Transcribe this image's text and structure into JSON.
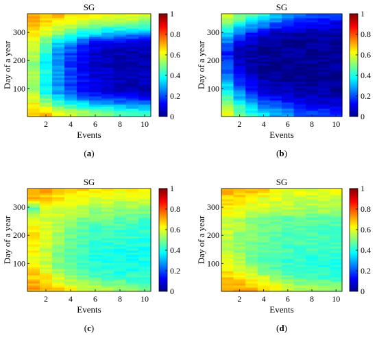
{
  "chart_data": [
    {
      "type": "heatmap",
      "panel_tag": "a",
      "title": "SG",
      "xlabel": "Events",
      "ylabel": "Day of a year",
      "x": [
        1,
        2,
        3,
        4,
        5,
        6,
        7,
        8,
        9,
        10
      ],
      "xticks": [
        2,
        4,
        6,
        8,
        10
      ],
      "yticks": [
        100,
        200,
        300
      ],
      "xlim": [
        0.5,
        10.5
      ],
      "ylim": [
        1,
        366
      ],
      "day_bands": [
        [
          15,
          [
            0.7,
            0.68,
            0.62,
            0.58,
            0.54,
            0.5,
            0.48,
            0.46,
            0.44,
            0.43
          ]
        ],
        [
          50,
          [
            0.62,
            0.52,
            0.44,
            0.38,
            0.34,
            0.3,
            0.27,
            0.25,
            0.23,
            0.22
          ]
        ],
        [
          85,
          [
            0.55,
            0.4,
            0.28,
            0.2,
            0.15,
            0.12,
            0.1,
            0.09,
            0.08,
            0.07
          ]
        ],
        [
          120,
          [
            0.5,
            0.38,
            0.26,
            0.18,
            0.12,
            0.09,
            0.07,
            0.06,
            0.05,
            0.05
          ]
        ],
        [
          155,
          [
            0.55,
            0.4,
            0.28,
            0.2,
            0.14,
            0.1,
            0.08,
            0.07,
            0.06,
            0.06
          ]
        ],
        [
          190,
          [
            0.5,
            0.36,
            0.25,
            0.17,
            0.11,
            0.08,
            0.06,
            0.05,
            0.05,
            0.05
          ]
        ],
        [
          225,
          [
            0.55,
            0.4,
            0.27,
            0.18,
            0.12,
            0.08,
            0.06,
            0.05,
            0.05,
            0.05
          ]
        ],
        [
          260,
          [
            0.58,
            0.46,
            0.34,
            0.25,
            0.17,
            0.11,
            0.08,
            0.07,
            0.06,
            0.06
          ]
        ],
        [
          295,
          [
            0.64,
            0.58,
            0.5,
            0.44,
            0.38,
            0.33,
            0.3,
            0.28,
            0.27,
            0.26
          ]
        ],
        [
          330,
          [
            0.7,
            0.66,
            0.62,
            0.58,
            0.55,
            0.53,
            0.51,
            0.5,
            0.49,
            0.48
          ]
        ],
        [
          360,
          [
            0.72,
            0.7,
            0.68,
            0.66,
            0.64,
            0.62,
            0.61,
            0.6,
            0.6,
            0.59
          ]
        ]
      ]
    },
    {
      "type": "heatmap",
      "panel_tag": "b",
      "title": "SG",
      "xlabel": "Events",
      "ylabel": "Day of a year",
      "x": [
        1,
        2,
        3,
        4,
        5,
        6,
        7,
        8,
        9,
        10
      ],
      "xticks": [
        2,
        4,
        6,
        8,
        10
      ],
      "yticks": [
        100,
        200,
        300
      ],
      "xlim": [
        0.5,
        10.5
      ],
      "ylim": [
        1,
        366
      ],
      "day_bands": [
        [
          15,
          [
            0.6,
            0.48,
            0.4,
            0.34,
            0.3,
            0.26,
            0.22,
            0.2,
            0.18,
            0.17
          ]
        ],
        [
          50,
          [
            0.52,
            0.38,
            0.28,
            0.22,
            0.18,
            0.15,
            0.12,
            0.1,
            0.09,
            0.08
          ]
        ],
        [
          85,
          [
            0.4,
            0.26,
            0.16,
            0.11,
            0.08,
            0.06,
            0.05,
            0.04,
            0.04,
            0.04
          ]
        ],
        [
          120,
          [
            0.32,
            0.18,
            0.1,
            0.06,
            0.04,
            0.03,
            0.03,
            0.03,
            0.03,
            0.03
          ]
        ],
        [
          155,
          [
            0.22,
            0.1,
            0.05,
            0.03,
            0.02,
            0.02,
            0.02,
            0.02,
            0.02,
            0.02
          ]
        ],
        [
          190,
          [
            0.18,
            0.07,
            0.04,
            0.02,
            0.02,
            0.02,
            0.02,
            0.02,
            0.02,
            0.02
          ]
        ],
        [
          225,
          [
            0.16,
            0.06,
            0.03,
            0.02,
            0.02,
            0.02,
            0.02,
            0.02,
            0.02,
            0.02
          ]
        ],
        [
          260,
          [
            0.22,
            0.1,
            0.05,
            0.03,
            0.02,
            0.02,
            0.02,
            0.02,
            0.02,
            0.02
          ]
        ],
        [
          295,
          [
            0.34,
            0.22,
            0.14,
            0.09,
            0.06,
            0.05,
            0.04,
            0.04,
            0.04,
            0.04
          ]
        ],
        [
          330,
          [
            0.48,
            0.4,
            0.32,
            0.26,
            0.2,
            0.16,
            0.13,
            0.11,
            0.1,
            0.09
          ]
        ],
        [
          360,
          [
            0.58,
            0.52,
            0.46,
            0.4,
            0.34,
            0.28,
            0.24,
            0.21,
            0.19,
            0.18
          ]
        ]
      ]
    },
    {
      "type": "heatmap",
      "panel_tag": "c",
      "title": "SG",
      "xlabel": "Events",
      "ylabel": "Day of a year",
      "x": [
        1,
        2,
        3,
        4,
        5,
        6,
        7,
        8,
        9,
        10
      ],
      "xticks": [
        2,
        4,
        6,
        8,
        10
      ],
      "yticks": [
        100,
        200,
        300
      ],
      "xlim": [
        0.5,
        10.5
      ],
      "ylim": [
        1,
        366
      ],
      "day_bands": [
        [
          15,
          [
            0.72,
            0.7,
            0.66,
            0.62,
            0.58,
            0.55,
            0.53,
            0.52,
            0.51,
            0.5
          ]
        ],
        [
          50,
          [
            0.68,
            0.64,
            0.58,
            0.53,
            0.49,
            0.46,
            0.44,
            0.43,
            0.42,
            0.42
          ]
        ],
        [
          85,
          [
            0.64,
            0.58,
            0.52,
            0.47,
            0.44,
            0.42,
            0.41,
            0.4,
            0.4,
            0.4
          ]
        ],
        [
          120,
          [
            0.62,
            0.56,
            0.5,
            0.46,
            0.43,
            0.41,
            0.4,
            0.4,
            0.39,
            0.39
          ]
        ],
        [
          155,
          [
            0.62,
            0.56,
            0.51,
            0.47,
            0.44,
            0.42,
            0.41,
            0.4,
            0.4,
            0.4
          ]
        ],
        [
          190,
          [
            0.64,
            0.58,
            0.53,
            0.49,
            0.46,
            0.44,
            0.43,
            0.42,
            0.42,
            0.41
          ]
        ],
        [
          225,
          [
            0.62,
            0.58,
            0.54,
            0.5,
            0.47,
            0.45,
            0.44,
            0.43,
            0.43,
            0.42
          ]
        ],
        [
          260,
          [
            0.6,
            0.58,
            0.56,
            0.53,
            0.51,
            0.49,
            0.48,
            0.47,
            0.47,
            0.46
          ]
        ],
        [
          295,
          [
            0.45,
            0.6,
            0.58,
            0.56,
            0.55,
            0.54,
            0.53,
            0.52,
            0.52,
            0.52
          ]
        ],
        [
          330,
          [
            0.68,
            0.66,
            0.64,
            0.62,
            0.61,
            0.6,
            0.59,
            0.58,
            0.58,
            0.57
          ]
        ],
        [
          360,
          [
            0.72,
            0.72,
            0.7,
            0.68,
            0.66,
            0.64,
            0.63,
            0.62,
            0.62,
            0.61
          ]
        ]
      ]
    },
    {
      "type": "heatmap",
      "panel_tag": "d",
      "title": "SG",
      "xlabel": "Events",
      "ylabel": "Day of a year",
      "x": [
        1,
        2,
        3,
        4,
        5,
        6,
        7,
        8,
        9,
        10
      ],
      "xticks": [
        2,
        4,
        6,
        8,
        10
      ],
      "yticks": [
        100,
        200,
        300
      ],
      "xlim": [
        0.5,
        10.5
      ],
      "ylim": [
        1,
        366
      ],
      "day_bands": [
        [
          15,
          [
            0.72,
            0.72,
            0.7,
            0.66,
            0.62,
            0.58,
            0.55,
            0.53,
            0.52,
            0.51
          ]
        ],
        [
          50,
          [
            0.68,
            0.66,
            0.62,
            0.57,
            0.52,
            0.48,
            0.46,
            0.44,
            0.43,
            0.43
          ]
        ],
        [
          85,
          [
            0.62,
            0.58,
            0.53,
            0.48,
            0.45,
            0.43,
            0.42,
            0.41,
            0.41,
            0.4
          ]
        ],
        [
          120,
          [
            0.58,
            0.54,
            0.5,
            0.47,
            0.45,
            0.43,
            0.42,
            0.42,
            0.42,
            0.41
          ]
        ],
        [
          155,
          [
            0.56,
            0.52,
            0.49,
            0.47,
            0.46,
            0.45,
            0.44,
            0.44,
            0.44,
            0.44
          ]
        ],
        [
          190,
          [
            0.57,
            0.53,
            0.5,
            0.48,
            0.47,
            0.46,
            0.45,
            0.45,
            0.45,
            0.45
          ]
        ],
        [
          225,
          [
            0.56,
            0.53,
            0.5,
            0.48,
            0.47,
            0.46,
            0.46,
            0.45,
            0.45,
            0.45
          ]
        ],
        [
          260,
          [
            0.58,
            0.55,
            0.52,
            0.5,
            0.49,
            0.48,
            0.48,
            0.47,
            0.47,
            0.47
          ]
        ],
        [
          295,
          [
            0.64,
            0.62,
            0.6,
            0.58,
            0.57,
            0.56,
            0.55,
            0.55,
            0.55,
            0.54
          ]
        ],
        [
          330,
          [
            0.66,
            0.64,
            0.62,
            0.6,
            0.59,
            0.58,
            0.57,
            0.57,
            0.57,
            0.56
          ]
        ],
        [
          360,
          [
            0.72,
            0.7,
            0.68,
            0.66,
            0.64,
            0.62,
            0.61,
            0.6,
            0.6,
            0.6
          ]
        ]
      ]
    }
  ],
  "colorbar": {
    "colormap": "jet",
    "range": [
      0,
      1
    ],
    "ticks": [
      "0",
      "0.2",
      "0.4",
      "0.6",
      "0.8",
      "1"
    ]
  }
}
